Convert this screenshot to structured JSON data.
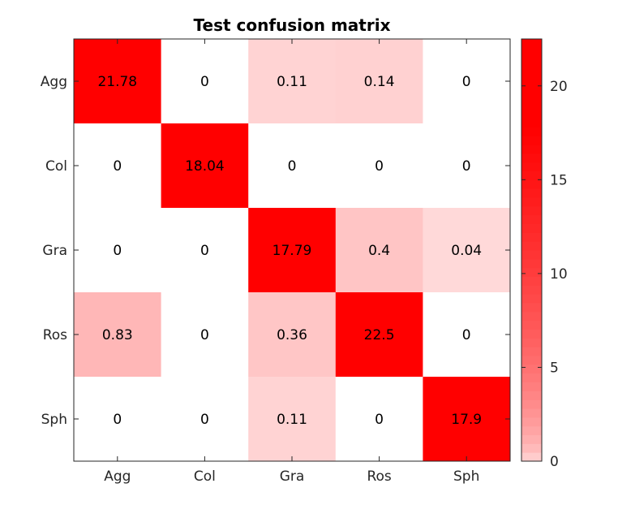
{
  "chart_data": {
    "type": "heatmap",
    "title": "Test confusion matrix",
    "xlabel": "",
    "ylabel": "",
    "x_categories": [
      "Agg",
      "Col",
      "Gra",
      "Ros",
      "Sph"
    ],
    "y_categories": [
      "Agg",
      "Col",
      "Gra",
      "Ros",
      "Sph"
    ],
    "values": [
      [
        21.78,
        0,
        0.11,
        0.14,
        0
      ],
      [
        0,
        18.04,
        0,
        0,
        0
      ],
      [
        0,
        0,
        17.79,
        0.4,
        0.04
      ],
      [
        0.83,
        0,
        0.36,
        22.5,
        0
      ],
      [
        0,
        0,
        0.11,
        0,
        17.9
      ]
    ],
    "cell_labels": [
      [
        "21.78",
        "0",
        "0.11",
        "0.14",
        "0"
      ],
      [
        "0",
        "18.04",
        "0",
        "0",
        "0"
      ],
      [
        "0",
        "0",
        "17.79",
        "0.4",
        "0.04"
      ],
      [
        "0.83",
        "0",
        "0.36",
        "22.5",
        "0"
      ],
      [
        "0",
        "0",
        "0.11",
        "0",
        "17.9"
      ]
    ],
    "colorbar": {
      "range": [
        0,
        22.5
      ],
      "ticks": [
        0,
        5,
        10,
        15,
        20
      ],
      "tick_labels": [
        "0",
        "5",
        "10",
        "15",
        "20"
      ]
    },
    "colormap": {
      "low": "#ffffff",
      "high": "#ff0000"
    },
    "grid": false
  }
}
